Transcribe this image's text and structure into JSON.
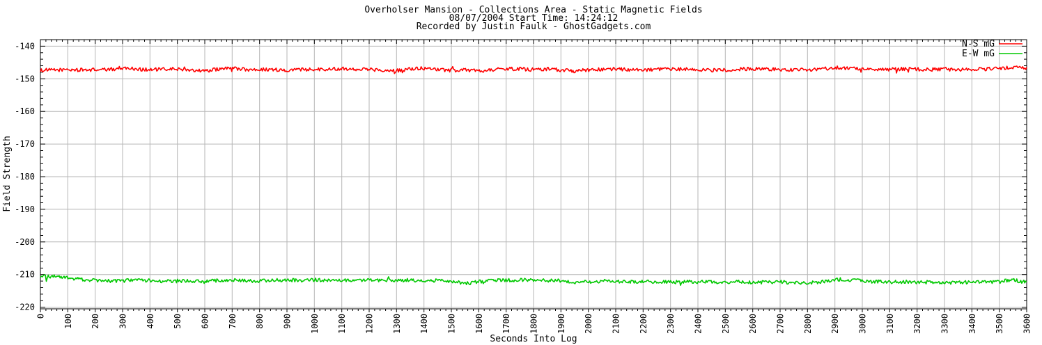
{
  "figure": {
    "title_line1": "Overholser Mansion - Collections Area - Static Magnetic Fields",
    "title_line2": "08/07/2004  Start Time: 14:24:12",
    "title_line3": "Recorded by Justin Faulk - GhostGadgets.com"
  },
  "chart_data": {
    "type": "line",
    "title": "Overholser Mansion - Collections Area - Static Magnetic Fields",
    "subtitle": "08/07/2004  Start Time: 14:24:12",
    "credit": "Recorded by Justin Faulk - GhostGadgets.com",
    "xlabel": "Seconds Into Log",
    "ylabel": "Field Strength",
    "xlim": [
      0,
      3600
    ],
    "ylim": [
      -220.5,
      -138
    ],
    "x_major_tick_step": 100,
    "x_minor_tick_step": 20,
    "y_major_tick_step": 10,
    "y_minor_tick_step": 2,
    "grid": true,
    "legend_position": "top-right",
    "background": "#ffffff",
    "grid_color": "#b6b6b6",
    "border_color": "#000000",
    "noise_amplitude_mG": 0.55,
    "sample_step_seconds": 50,
    "series": [
      {
        "name": "N-S mG",
        "color": "#ff0000",
        "values": [
          -147.4,
          -147.3,
          -147.2,
          -147.3,
          -147.2,
          -147.2,
          -146.6,
          -147.0,
          -147.2,
          -147.1,
          -147.0,
          -147.2,
          -147.6,
          -147.0,
          -146.7,
          -147.2,
          -147.1,
          -147.2,
          -147.3,
          -147.2,
          -147.0,
          -147.1,
          -146.8,
          -147.0,
          -147.1,
          -147.3,
          -147.5,
          -147.0,
          -146.8,
          -147.2,
          -147.4,
          -147.3,
          -147.6,
          -147.2,
          -146.9,
          -147.0,
          -147.2,
          -147.0,
          -147.3,
          -147.6,
          -147.3,
          -147.1,
          -147.0,
          -147.2,
          -147.3,
          -147.2,
          -147.1,
          -147.0,
          -147.2,
          -147.4,
          -147.3,
          -147.1,
          -146.9,
          -147.0,
          -147.2,
          -147.3,
          -147.2,
          -147.0,
          -146.6,
          -146.7,
          -147.0,
          -147.2,
          -147.1,
          -147.0,
          -147.1,
          -147.2,
          -147.0,
          -147.3,
          -147.1,
          -147.0,
          -146.8,
          -146.6,
          -146.7
        ]
      },
      {
        "name": "E-W mG",
        "color": "#00c800",
        "values": [
          -210.6,
          -210.7,
          -211.0,
          -211.5,
          -211.8,
          -212.0,
          -211.9,
          -211.7,
          -211.8,
          -212.0,
          -212.1,
          -211.9,
          -212.2,
          -211.8,
          -211.6,
          -211.9,
          -212.0,
          -211.8,
          -211.7,
          -211.8,
          -211.6,
          -211.7,
          -211.8,
          -211.7,
          -211.8,
          -211.9,
          -211.8,
          -211.7,
          -211.8,
          -211.9,
          -212.0,
          -212.8,
          -212.2,
          -211.7,
          -211.8,
          -211.6,
          -211.7,
          -211.8,
          -211.9,
          -212.5,
          -212.2,
          -212.0,
          -212.1,
          -212.2,
          -212.1,
          -212.2,
          -212.3,
          -212.2,
          -212.3,
          -212.2,
          -212.3,
          -212.2,
          -212.3,
          -212.4,
          -212.3,
          -212.4,
          -212.5,
          -212.3,
          -211.4,
          -211.6,
          -212.0,
          -212.2,
          -212.3,
          -212.2,
          -212.4,
          -212.3,
          -212.4,
          -212.5,
          -212.3,
          -212.4,
          -212.2,
          -211.6,
          -212.4
        ]
      }
    ]
  }
}
